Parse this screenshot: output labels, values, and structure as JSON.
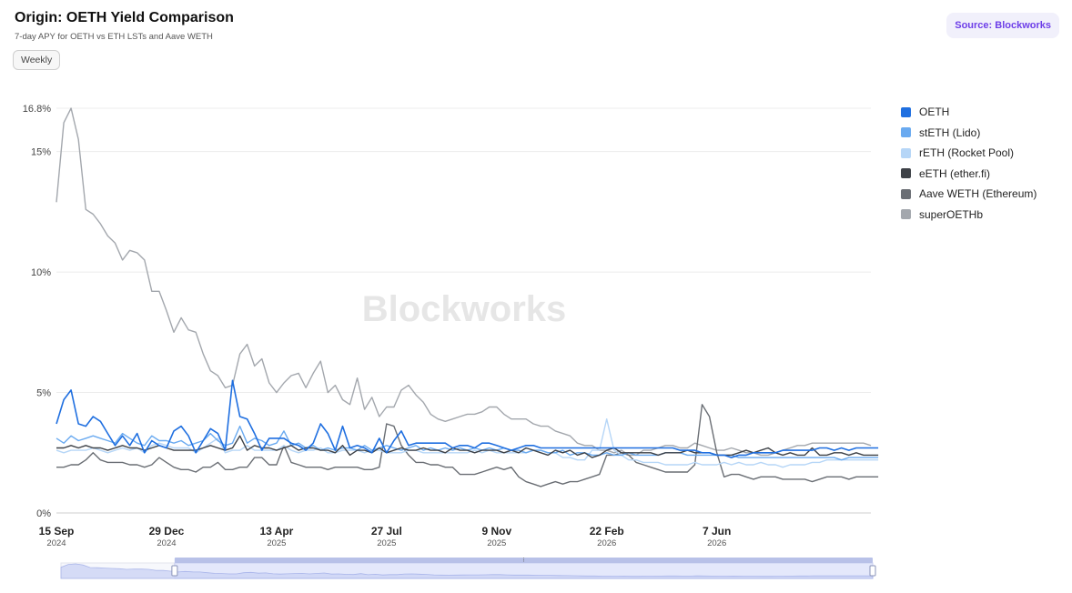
{
  "header": {
    "title": "Origin: OETH Yield Comparison",
    "subtitle": "7-day APY for OETH vs ETH LSTs and Aave WETH",
    "period_label": "Weekly",
    "source_label": "Source: Blockworks"
  },
  "watermark": "Blockworks",
  "colors": {
    "OETH": "#1f6fe0",
    "stETH (Lido)": "#6aaaf0",
    "rETH (Rocket Pool)": "#b6d6f7",
    "eETH (ether.fi)": "#3d4147",
    "Aave WETH (Ethereum)": "#6a6e74",
    "superOETHb": "#a3a7ad"
  },
  "chart_data": {
    "type": "line",
    "ylabel": "",
    "ylim": [
      0,
      16.8
    ],
    "yticks": [
      "0%",
      "5%",
      "10%",
      "15%",
      "16.8%"
    ],
    "ytick_values": [
      0,
      5,
      10,
      15,
      16.8
    ],
    "xticks": [
      {
        "label": "15 Sep",
        "year": "2024"
      },
      {
        "label": "29 Dec",
        "year": "2024"
      },
      {
        "label": "13 Apr",
        "year": "2025"
      },
      {
        "label": "27 Jul",
        "year": "2025"
      },
      {
        "label": "9 Nov",
        "year": "2025"
      },
      {
        "label": "22 Feb",
        "year": "2026"
      },
      {
        "label": "7 Jun",
        "year": "2026"
      }
    ],
    "x_start": "2024-09-15",
    "x_step_days": 7,
    "grid": true,
    "legend_placement": "right",
    "series": [
      {
        "name": "superOETHb",
        "values": [
          12.9,
          16.2,
          16.8,
          15.5,
          12.6,
          12.4,
          12.0,
          11.5,
          11.2,
          10.5,
          10.9,
          10.8,
          10.5,
          9.2,
          9.2,
          8.4,
          7.5,
          8.1,
          7.6,
          7.5,
          6.6,
          5.9,
          5.7,
          5.2,
          5.3,
          6.6,
          7.0,
          6.1,
          6.4,
          5.4,
          5.0,
          5.4,
          5.7,
          5.8,
          5.2,
          5.8,
          6.3,
          5.0,
          5.3,
          4.7,
          4.5,
          5.6,
          4.3,
          4.8,
          4.0,
          4.4,
          4.4,
          5.1,
          5.3,
          4.9,
          4.6,
          4.1,
          3.9,
          3.8,
          3.9,
          4.0,
          4.1,
          4.1,
          4.2,
          4.4,
          4.4,
          4.1,
          3.9,
          3.9,
          3.9,
          3.7,
          3.6,
          3.6,
          3.4,
          3.3,
          3.2,
          2.9,
          2.8,
          2.8,
          2.6,
          2.6,
          2.5,
          2.6,
          2.4,
          2.4,
          2.6,
          2.6,
          2.7,
          2.8,
          2.8,
          2.7,
          2.7,
          2.9,
          2.8,
          2.7,
          2.6,
          2.6,
          2.7,
          2.6,
          2.5,
          2.5,
          2.4,
          2.4,
          2.5,
          2.6,
          2.7,
          2.8,
          2.8,
          2.9,
          2.9,
          2.9,
          2.9,
          2.9,
          2.9,
          2.9,
          2.9,
          2.8
        ]
      },
      {
        "name": "Aave WETH (Ethereum)",
        "values": [
          1.9,
          1.9,
          2.0,
          2.0,
          2.2,
          2.5,
          2.2,
          2.1,
          2.1,
          2.1,
          2.0,
          2.0,
          1.9,
          2.0,
          2.3,
          2.1,
          1.9,
          1.8,
          1.8,
          1.7,
          1.9,
          1.9,
          2.1,
          1.8,
          1.8,
          1.9,
          1.9,
          2.3,
          2.3,
          2.0,
          2.0,
          2.8,
          2.1,
          2.0,
          1.9,
          1.9,
          1.9,
          1.8,
          1.9,
          1.9,
          1.9,
          1.9,
          1.8,
          1.8,
          1.9,
          3.7,
          3.6,
          2.8,
          2.4,
          2.1,
          2.1,
          2.0,
          2.0,
          1.9,
          1.9,
          1.6,
          1.6,
          1.6,
          1.7,
          1.8,
          1.9,
          1.8,
          1.9,
          1.5,
          1.3,
          1.2,
          1.1,
          1.2,
          1.3,
          1.2,
          1.3,
          1.3,
          1.4,
          1.5,
          1.6,
          2.4,
          2.4,
          2.5,
          2.4,
          2.1,
          2.0,
          1.9,
          1.8,
          1.7,
          1.7,
          1.7,
          1.7,
          2.0,
          4.5,
          4.0,
          2.5,
          1.5,
          1.6,
          1.6,
          1.5,
          1.4,
          1.5,
          1.5,
          1.5,
          1.4,
          1.4,
          1.4,
          1.4,
          1.3,
          1.4,
          1.5,
          1.5,
          1.5,
          1.4,
          1.5,
          1.5,
          1.5,
          1.5
        ]
      },
      {
        "name": "rETH (Rocket Pool)",
        "values": [
          2.6,
          2.5,
          2.6,
          2.6,
          2.6,
          2.7,
          2.6,
          2.5,
          2.6,
          2.7,
          2.6,
          2.7,
          2.5,
          2.8,
          2.9,
          2.8,
          2.7,
          2.7,
          2.7,
          2.5,
          2.7,
          2.9,
          3.1,
          2.5,
          2.6,
          2.6,
          2.8,
          2.6,
          2.6,
          2.6,
          2.6,
          2.8,
          2.6,
          2.5,
          2.6,
          2.6,
          2.7,
          2.5,
          2.5,
          2.6,
          2.6,
          2.6,
          2.5,
          2.6,
          2.6,
          2.5,
          2.5,
          2.5,
          2.6,
          2.6,
          2.5,
          2.5,
          2.5,
          2.5,
          2.5,
          2.5,
          2.5,
          2.6,
          2.5,
          2.6,
          2.5,
          2.5,
          2.5,
          2.5,
          2.5,
          2.6,
          2.6,
          2.5,
          2.5,
          2.3,
          2.3,
          2.2,
          2.2,
          2.6,
          2.6,
          3.9,
          2.6,
          2.4,
          2.2,
          2.2,
          2.1,
          2.1,
          2.1,
          2.0,
          2.0,
          2.0,
          2.0,
          2.1,
          2.0,
          2.0,
          2.0,
          2.1,
          2.0,
          2.1,
          2.0,
          2.0,
          2.1,
          2.0,
          2.0,
          1.9,
          2.0,
          2.0,
          2.0,
          2.1,
          2.1,
          2.2,
          2.2,
          2.2,
          2.2,
          2.2,
          2.2,
          2.2,
          2.2
        ]
      },
      {
        "name": "stETH (Lido)",
        "values": [
          3.1,
          2.9,
          3.2,
          3.0,
          3.1,
          3.2,
          3.1,
          3.0,
          2.9,
          3.3,
          3.1,
          2.9,
          2.8,
          3.2,
          3.0,
          3.0,
          2.9,
          3.0,
          2.8,
          2.9,
          3.0,
          3.3,
          3.0,
          2.8,
          2.9,
          3.6,
          2.9,
          3.1,
          3.0,
          2.8,
          2.9,
          3.4,
          2.8,
          2.9,
          2.7,
          2.8,
          2.6,
          2.7,
          2.6,
          2.7,
          2.7,
          2.6,
          2.8,
          2.6,
          2.7,
          2.8,
          2.7,
          2.6,
          2.7,
          2.8,
          2.6,
          2.7,
          2.6,
          2.7,
          2.6,
          2.7,
          2.6,
          2.7,
          2.6,
          2.7,
          2.6,
          2.7,
          2.6,
          2.6,
          2.5,
          2.6,
          2.6,
          2.5,
          2.5,
          2.6,
          2.4,
          2.5,
          2.5,
          2.4,
          2.4,
          2.5,
          2.4,
          2.4,
          2.5,
          2.4,
          2.4,
          2.4,
          2.4,
          2.5,
          2.5,
          2.5,
          2.4,
          2.4,
          2.4,
          2.4,
          2.4,
          2.4,
          2.4,
          2.3,
          2.3,
          2.3,
          2.3,
          2.3,
          2.3,
          2.3,
          2.3,
          2.3,
          2.3,
          2.3,
          2.3,
          2.3,
          2.3,
          2.2,
          2.3,
          2.3,
          2.3,
          2.3,
          2.3
        ]
      },
      {
        "name": "eETH (ether.fi)",
        "values": [
          2.7,
          2.7,
          2.8,
          2.7,
          2.8,
          2.7,
          2.7,
          2.6,
          2.7,
          2.8,
          2.7,
          2.7,
          2.6,
          2.7,
          2.8,
          2.7,
          2.6,
          2.6,
          2.6,
          2.6,
          2.7,
          2.8,
          2.7,
          2.6,
          2.7,
          3.2,
          2.6,
          2.8,
          2.7,
          2.7,
          2.6,
          2.7,
          2.8,
          2.6,
          2.7,
          2.7,
          2.6,
          2.6,
          2.5,
          2.8,
          2.4,
          2.6,
          2.6,
          2.5,
          2.7,
          2.5,
          2.6,
          2.7,
          2.6,
          2.6,
          2.7,
          2.6,
          2.6,
          2.5,
          2.7,
          2.6,
          2.6,
          2.5,
          2.6,
          2.6,
          2.6,
          2.5,
          2.6,
          2.5,
          2.7,
          2.6,
          2.5,
          2.4,
          2.6,
          2.5,
          2.6,
          2.4,
          2.5,
          2.3,
          2.4,
          2.6,
          2.7,
          2.5,
          2.5,
          2.5,
          2.5,
          2.5,
          2.4,
          2.5,
          2.5,
          2.5,
          2.6,
          2.5,
          2.5,
          2.5,
          2.4,
          2.4,
          2.4,
          2.5,
          2.6,
          2.5,
          2.6,
          2.7,
          2.5,
          2.4,
          2.5,
          2.4,
          2.4,
          2.7,
          2.4,
          2.4,
          2.5,
          2.5,
          2.4,
          2.5,
          2.4,
          2.4,
          2.4
        ]
      },
      {
        "name": "OETH",
        "values": [
          3.7,
          4.7,
          5.1,
          3.7,
          3.6,
          4.0,
          3.8,
          3.3,
          2.8,
          3.2,
          2.8,
          3.3,
          2.5,
          3.0,
          2.8,
          2.7,
          3.4,
          3.6,
          3.2,
          2.5,
          3.0,
          3.5,
          3.3,
          2.6,
          5.5,
          4.0,
          3.9,
          3.3,
          2.6,
          3.1,
          3.1,
          3.1,
          2.9,
          2.8,
          2.6,
          2.9,
          3.7,
          3.3,
          2.6,
          3.6,
          2.7,
          2.8,
          2.7,
          2.5,
          3.1,
          2.5,
          3.0,
          3.4,
          2.8,
          2.9,
          2.9,
          2.9,
          2.9,
          2.9,
          2.7,
          2.8,
          2.8,
          2.7,
          2.9,
          2.9,
          2.8,
          2.7,
          2.6,
          2.7,
          2.8,
          2.8,
          2.7,
          2.7,
          2.7,
          2.7,
          2.7,
          2.7,
          2.7,
          2.7,
          2.7,
          2.7,
          2.7,
          2.7,
          2.7,
          2.7,
          2.7,
          2.7,
          2.7,
          2.7,
          2.7,
          2.6,
          2.6,
          2.6,
          2.5,
          2.5,
          2.4,
          2.4,
          2.3,
          2.4,
          2.4,
          2.5,
          2.5,
          2.5,
          2.5,
          2.6,
          2.6,
          2.6,
          2.6,
          2.6,
          2.7,
          2.7,
          2.6,
          2.7,
          2.6,
          2.7,
          2.7,
          2.7,
          2.7
        ]
      }
    ],
    "legend": [
      "OETH",
      "stETH (Lido)",
      "rETH (Rocket Pool)",
      "eETH (ether.fi)",
      "Aave WETH (Ethereum)",
      "superOETHb"
    ]
  },
  "navigator": {
    "handle_glyph": "⁝",
    "range_start": 0.14,
    "range_end": 1.0
  }
}
